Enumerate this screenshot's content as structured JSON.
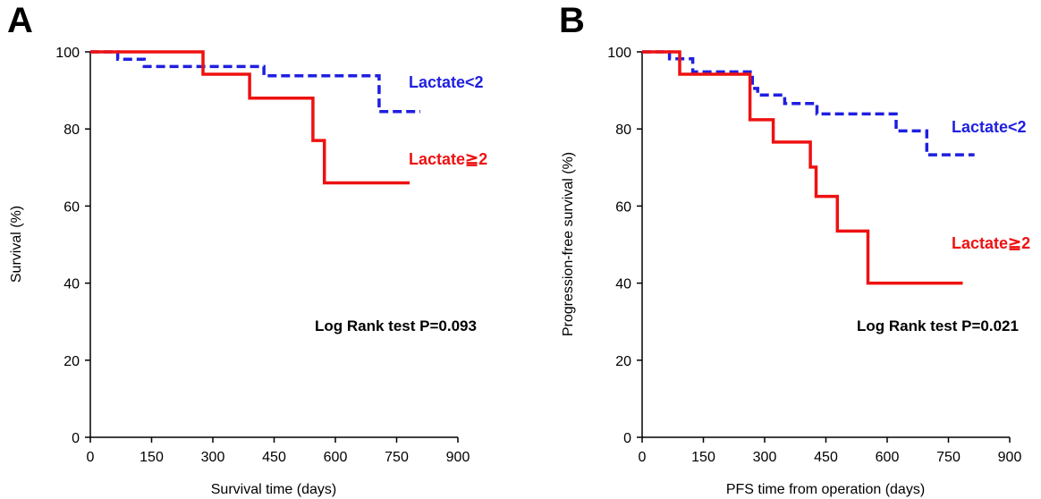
{
  "chart_data": [
    {
      "panel": "A",
      "type": "line",
      "xlabel": "Survival time (days)",
      "ylabel": "Survival (%)",
      "xlim": [
        0,
        900
      ],
      "ylim": [
        0,
        100
      ],
      "xticks": [
        0,
        150,
        300,
        450,
        600,
        750,
        900
      ],
      "yticks": [
        0,
        20,
        40,
        60,
        80,
        100
      ],
      "grid": false,
      "annotation": "Log Rank test P=0.093",
      "series": [
        {
          "name": "Lactate<2",
          "color": "#1f1fe0",
          "style": "dashed",
          "step": true,
          "x": [
            0,
            67,
            67,
            132,
            132,
            425,
            425,
            707,
            707,
            808
          ],
          "y": [
            100,
            100,
            98.1,
            98.1,
            96.2,
            96.2,
            93.8,
            93.8,
            84.5,
            84.5
          ]
        },
        {
          "name": "Lactate≧2",
          "color": "#ee1111",
          "style": "solid",
          "step": true,
          "x": [
            0,
            276,
            276,
            390,
            390,
            545,
            545,
            573,
            573,
            782
          ],
          "y": [
            100,
            100,
            94.2,
            94.2,
            88,
            88,
            77,
            77,
            66,
            66
          ]
        }
      ]
    },
    {
      "panel": "B",
      "type": "line",
      "xlabel": "PFS time from operation (days)",
      "ylabel": "Progression-free survival (%)",
      "xlim": [
        0,
        900
      ],
      "ylim": [
        0,
        100
      ],
      "xticks": [
        0,
        150,
        300,
        450,
        600,
        750,
        900
      ],
      "yticks": [
        0,
        20,
        40,
        60,
        80,
        100
      ],
      "grid": false,
      "annotation": "Log Rank test P=0.021",
      "series": [
        {
          "name": "Lactate<2",
          "color": "#1f1fe0",
          "style": "dashed",
          "step": true,
          "x": [
            0,
            67,
            67,
            124,
            124,
            270,
            270,
            283,
            283,
            349,
            349,
            428,
            428,
            622,
            622,
            697,
            697,
            814
          ],
          "y": [
            100,
            100,
            98.2,
            98.2,
            94.8,
            94.8,
            90.5,
            90.5,
            88.8,
            88.8,
            86.6,
            86.6,
            83.9,
            83.9,
            79.5,
            79.5,
            73.3,
            73.3
          ]
        },
        {
          "name": "Lactate≧2",
          "color": "#ee1111",
          "style": "solid",
          "step": true,
          "x": [
            0,
            92,
            92,
            264,
            264,
            321,
            321,
            412,
            412,
            426,
            426,
            478,
            478,
            553,
            553,
            785
          ],
          "y": [
            100,
            100,
            94.2,
            94.2,
            82.4,
            82.4,
            76.6,
            76.6,
            70.1,
            70.1,
            62.5,
            62.5,
            53.5,
            53.5,
            40,
            40
          ]
        }
      ]
    }
  ]
}
